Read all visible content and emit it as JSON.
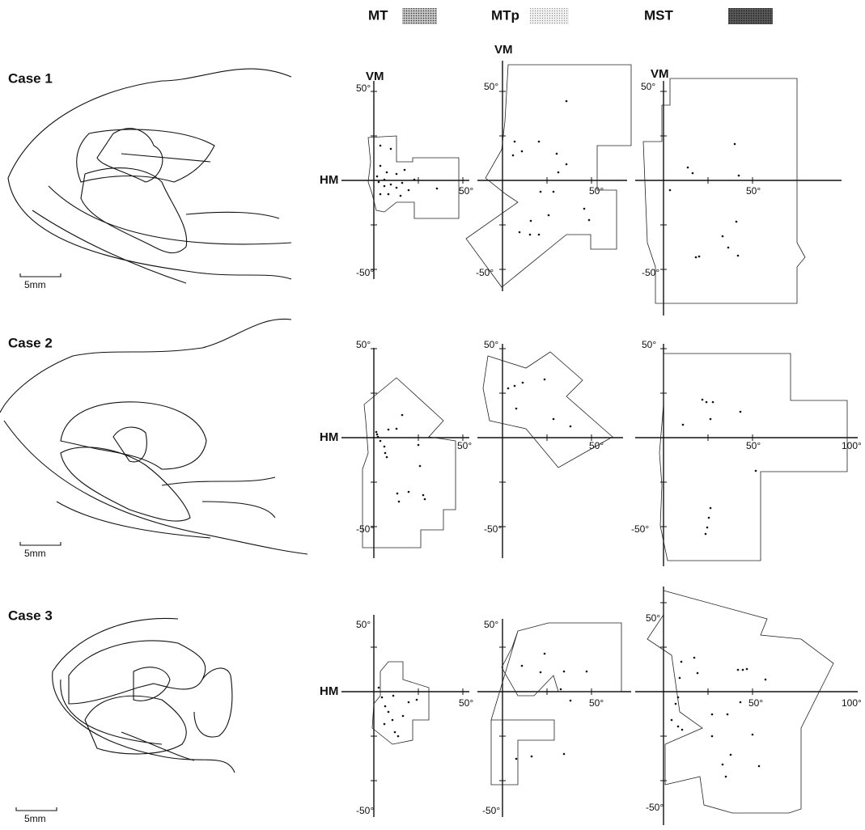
{
  "legend": [
    {
      "label": "MT"
    },
    {
      "label": "MTp"
    },
    {
      "label": "MST"
    }
  ],
  "cases": [
    {
      "label": "Case 1",
      "scale": "5mm",
      "plots": [
        {
          "vm": "VM",
          "hm": "HM",
          "top": "50°",
          "right": "50°",
          "bottom": "-50°"
        },
        {
          "vm": "VM",
          "top": "50°",
          "right": "50°",
          "bottom": "-50°"
        },
        {
          "vm": "VM",
          "top": "50°",
          "right": "50°",
          "bottom": "-50°"
        }
      ]
    },
    {
      "label": "Case 2",
      "scale": "5mm",
      "plots": [
        {
          "hm": "HM",
          "top": "50°",
          "right": "50°",
          "bottom": "-50°"
        },
        {
          "top": "50°",
          "right": "50°",
          "bottom": "-50°"
        },
        {
          "top": "50°",
          "mid": "50°",
          "right": "100°",
          "bottom": "-50°"
        }
      ]
    },
    {
      "label": "Case 3",
      "scale": "5mm",
      "plots": [
        {
          "hm": "HM",
          "top": "50°",
          "right": "50°",
          "bottom": "-50°"
        },
        {
          "top": "50°",
          "right": "50°",
          "bottom": "-50°"
        },
        {
          "top": "50°",
          "mid": "50°",
          "right": "100°",
          "bottom": "-50°"
        }
      ]
    }
  ]
}
